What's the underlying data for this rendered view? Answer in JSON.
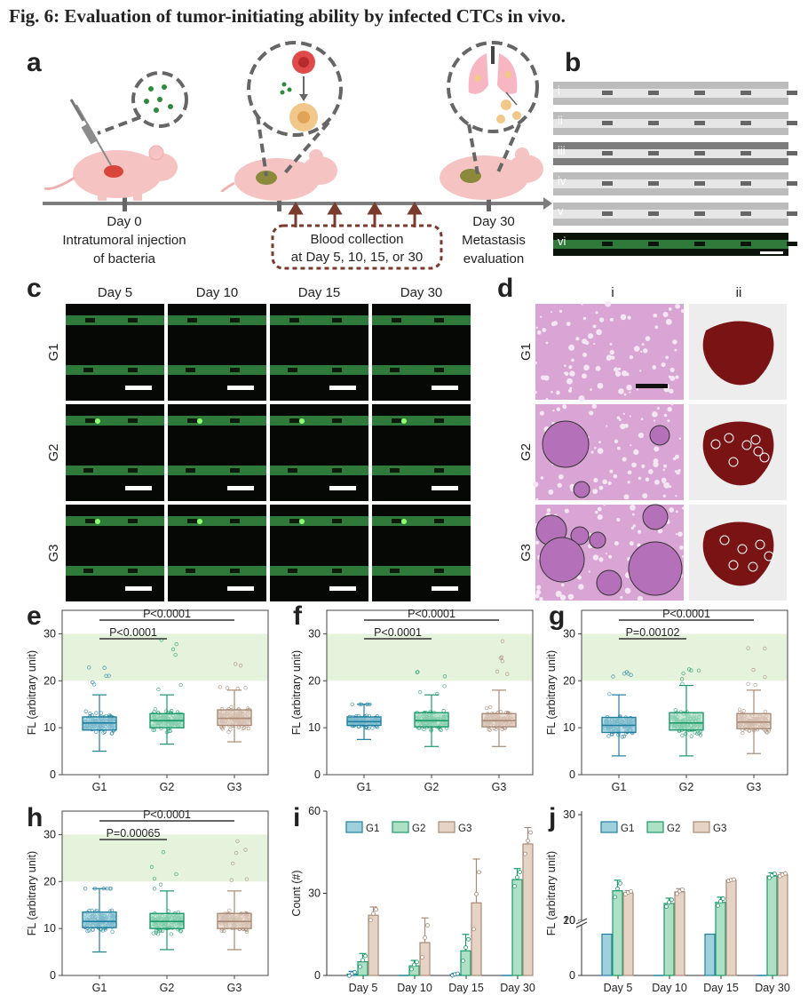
{
  "figure": {
    "title": "Fig. 6: Evaluation of tumor-initiating ability by infected CTCs in vivo."
  },
  "panel_a": {
    "label": "a",
    "day0": "Day 0",
    "day0_line1": "Intratumoral injection",
    "day0_line2": "of bacteria",
    "blood_line1": "Blood collection",
    "blood_line2": "at Day 5, 10, 15, or 30",
    "day30": "Day 30",
    "day30_line1": "Metastasis",
    "day30_line2": "evaluation",
    "colors": {
      "mouse": "#f6c3c3",
      "tumor_day0": "#d9453a",
      "tumor": "#8a8a3a",
      "arrow": "#7a3b2e",
      "timeline": "#7d7d7d"
    }
  },
  "panel_b": {
    "label": "b",
    "rows": [
      "i",
      "ii",
      "iii",
      "iv",
      "v",
      "vi"
    ]
  },
  "panel_c": {
    "label": "c",
    "columns": [
      "Day 5",
      "Day 10",
      "Day 15",
      "Day 30"
    ],
    "rows": [
      "G1",
      "G2",
      "G3"
    ]
  },
  "panel_d": {
    "label": "d",
    "columns": [
      "i",
      "ii"
    ],
    "rows": [
      "G1",
      "G2",
      "G3"
    ]
  },
  "box_panels": [
    {
      "label": "e",
      "ylabel": "FL (arbitrary unit)",
      "p_short": "P<0.0001",
      "p_long": "P<0.0001",
      "groups": [
        "G1",
        "G2",
        "G3"
      ],
      "ylim": [
        0,
        35
      ],
      "yticks": [
        0,
        10,
        20,
        30
      ],
      "shade": [
        20,
        30
      ],
      "stats": [
        {
          "q1": 9.5,
          "median": 11.0,
          "q3": 12.3,
          "lo": 5,
          "hi": 17,
          "max": 23
        },
        {
          "q1": 10.0,
          "median": 11.5,
          "q3": 13.0,
          "lo": 6.5,
          "hi": 17,
          "max": 29
        },
        {
          "q1": 10.5,
          "median": 12.0,
          "q3": 13.8,
          "lo": 7,
          "hi": 18,
          "max": 28
        }
      ]
    },
    {
      "label": "f",
      "ylabel": "FL (arbitrary unit)",
      "p_short": "P<0.0001",
      "p_long": "P<0.0001",
      "groups": [
        "G1",
        "G2",
        "G3"
      ],
      "ylim": [
        0,
        35
      ],
      "yticks": [
        0,
        10,
        20,
        30
      ],
      "shade": [
        20,
        30
      ],
      "stats": [
        {
          "q1": 10.5,
          "median": 11.3,
          "q3": 12.3,
          "lo": 7.5,
          "hi": 15,
          "max": 15
        },
        {
          "q1": 10.2,
          "median": 11.5,
          "q3": 13.2,
          "lo": 6,
          "hi": 17,
          "max": 22
        },
        {
          "q1": 10.2,
          "median": 11.5,
          "q3": 13.0,
          "lo": 6,
          "hi": 18,
          "max": 29
        }
      ]
    },
    {
      "label": "g",
      "ylabel": "FL (arbitrary unit)",
      "p_short": "P=0.00102",
      "p_long": "P<0.0001",
      "groups": [
        "G1",
        "G2",
        "G3"
      ],
      "ylim": [
        0,
        35
      ],
      "yticks": [
        0,
        10,
        20,
        30
      ],
      "shade": [
        20,
        30
      ],
      "stats": [
        {
          "q1": 9.0,
          "median": 10.5,
          "q3": 12.2,
          "lo": 4,
          "hi": 17,
          "max": 22
        },
        {
          "q1": 9.5,
          "median": 11.0,
          "q3": 13.2,
          "lo": 4,
          "hi": 19,
          "max": 23
        },
        {
          "q1": 9.8,
          "median": 11.2,
          "q3": 13.0,
          "lo": 4.5,
          "hi": 18,
          "max": 27.5
        }
      ]
    },
    {
      "label": "h",
      "ylabel": "FL (arbitrary unit)",
      "p_short": "P=0.00065",
      "p_long": "P<0.0001",
      "groups": [
        "G1",
        "G2",
        "G3"
      ],
      "ylim": [
        0,
        35
      ],
      "yticks": [
        0,
        10,
        20,
        30
      ],
      "shade": [
        20,
        30
      ],
      "stats": [
        {
          "q1": 10.2,
          "median": 11.5,
          "q3": 13.5,
          "lo": 5,
          "hi": 18.5,
          "max": 18.5
        },
        {
          "q1": 10.0,
          "median": 11.5,
          "q3": 13.2,
          "lo": 5.5,
          "hi": 18,
          "max": 28.5
        },
        {
          "q1": 10.0,
          "median": 11.5,
          "q3": 13.2,
          "lo": 5.5,
          "hi": 18,
          "max": 29
        }
      ]
    }
  ],
  "bar_panels": [
    {
      "label": "i",
      "ylabel": "Count (#)",
      "yticks": [
        0,
        30,
        60
      ],
      "ylim": [
        0,
        60
      ],
      "categories": [
        "Day 5",
        "Day 10",
        "Day 15",
        "Day 30"
      ],
      "series": [
        {
          "name": "G1",
          "values": [
            0.5,
            0,
            0.3,
            0
          ],
          "err": [
            1,
            0,
            0.5,
            0
          ]
        },
        {
          "name": "G2",
          "values": [
            5,
            3.5,
            9,
            35
          ],
          "err": [
            3,
            2,
            6,
            4
          ]
        },
        {
          "name": "G3",
          "values": [
            22,
            12,
            26.5,
            48
          ],
          "err": [
            3,
            9,
            16,
            6
          ]
        }
      ]
    },
    {
      "label": "j",
      "ylabel": "FL (arbitrary unit)",
      "yticks": [
        "0",
        "10",
        "20",
        "30"
      ],
      "axis_break": true,
      "categories": [
        "Day 5",
        "Day 10",
        "Day 15",
        "Day 30"
      ],
      "series": [
        {
          "name": "G1",
          "values": [
            7.5,
            0,
            7.5,
            0
          ],
          "err": [
            0,
            0,
            0,
            0
          ]
        },
        {
          "name": "G2",
          "values": [
            22.8,
            21.6,
            21.7,
            24.2
          ],
          "err": [
            1.0,
            0.5,
            0.5,
            0.3
          ]
        },
        {
          "name": "G3",
          "values": [
            22.6,
            22.7,
            23.8,
            24.3
          ],
          "err": [
            0.2,
            0.3,
            0.1,
            0.2
          ]
        }
      ]
    }
  ],
  "colors": {
    "G1": {
      "fill": "#9fd0dc",
      "stroke": "#1f7fa0"
    },
    "G2": {
      "fill": "#aee0c6",
      "stroke": "#1a9a6a"
    },
    "G3": {
      "fill": "#e5d3c6",
      "stroke": "#a88a76"
    },
    "shade": "#e6f3dc",
    "he_stain": "#d9a5d4",
    "liver": "#7a1414",
    "fluor_channel": "#2f7a3a"
  }
}
